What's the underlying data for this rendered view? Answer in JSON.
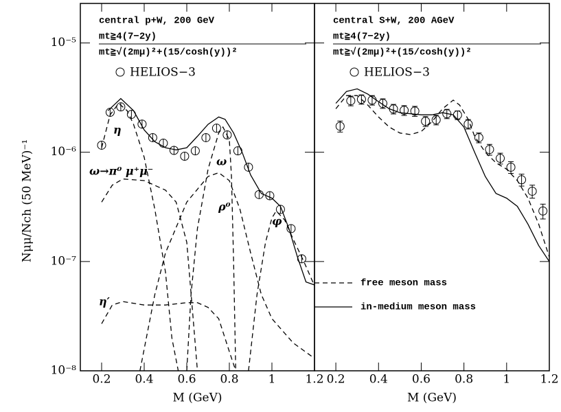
{
  "chart_data": [
    {
      "type": "line",
      "log_y": true,
      "xlabel": "M (GeV)",
      "ylabel": "Nμμ/Nch (50 MeV)⁻¹",
      "annotations": [
        "central p+W, 200 GeV",
        "mt≧4(7−2y)",
        "mt≧√(2mμ)²+(15/cosh(y))²"
      ],
      "xlim": [
        0.1,
        1.2
      ],
      "xticks": [
        0.2,
        0.4,
        0.6,
        0.8,
        1,
        1.2
      ],
      "ylim": [
        1e-08,
        2.3e-05
      ],
      "yticks": [
        {
          "value": 1e-08,
          "label": "10⁻⁸"
        },
        {
          "value": 1e-07,
          "label": "10⁻⁷"
        },
        {
          "value": 1e-06,
          "label": "10⁻⁶"
        },
        {
          "value": 1e-05,
          "label": "10⁻⁵"
        }
      ],
      "series": [
        {
          "name": "HELIOS−3",
          "style": "points",
          "color": "#000000",
          "x": [
            0.2,
            0.24,
            0.29,
            0.34,
            0.39,
            0.44,
            0.49,
            0.54,
            0.59,
            0.64,
            0.69,
            0.74,
            0.79,
            0.84,
            0.89,
            0.94,
            0.99,
            1.04,
            1.09,
            1.14
          ],
          "values": [
            1.16e-06,
            2.32e-06,
            2.6e-06,
            2.22e-06,
            1.81e-06,
            1.36e-06,
            1.21e-06,
            1.04e-06,
            9.2e-07,
            1.03e-06,
            1.36e-06,
            1.66e-06,
            1.44e-06,
            1.03e-06,
            7.3e-07,
            4.1e-07,
            4e-07,
            3e-07,
            2e-07,
            1.06e-07
          ]
        },
        {
          "style": "solid",
          "color": "#000000",
          "x": [
            0.23,
            0.29,
            0.35,
            0.4,
            0.45,
            0.5,
            0.55,
            0.6,
            0.65,
            0.7,
            0.75,
            0.78,
            0.82,
            0.86,
            0.9,
            0.95,
            1,
            1.04,
            1.08,
            1.12,
            1.16,
            1.2
          ],
          "values": [
            2.4e-06,
            3.1e-06,
            2.4e-06,
            1.6e-06,
            1.25e-06,
            1.1e-06,
            1.05e-06,
            1.1e-06,
            1.4e-06,
            1.8e-06,
            2.1e-06,
            2e-06,
            1.5e-06,
            1e-06,
            6.2e-07,
            4.2e-07,
            3.8e-07,
            3.2e-07,
            2e-07,
            1.1e-07,
            6.5e-08,
            6.1e-08
          ]
        },
        {
          "name": "η",
          "style": "dashed",
          "color": "#000000",
          "x": [
            0.2,
            0.24,
            0.28,
            0.32,
            0.35,
            0.4,
            0.45,
            0.5,
            0.53,
            0.56
          ],
          "values": [
            1.1e-06,
            2.2e-06,
            2.8e-06,
            2.4e-06,
            1.8e-06,
            9e-07,
            3e-07,
            8e-08,
            2e-08,
            1e-08
          ]
        },
        {
          "name": "ω→π⁰ μ⁺μ⁻",
          "style": "dashed",
          "color": "#000000",
          "x": [
            0.2,
            0.25,
            0.3,
            0.4,
            0.5,
            0.55,
            0.6,
            0.63,
            0.65
          ],
          "values": [
            3.5e-07,
            5e-07,
            5.7e-07,
            5.5e-07,
            4.5e-07,
            3.5e-07,
            1.5e-07,
            3e-08,
            1e-08
          ]
        },
        {
          "name": "ω",
          "style": "dashed",
          "color": "#000000",
          "x": [
            0.6,
            0.62,
            0.65,
            0.7,
            0.75,
            0.77,
            0.8,
            0.81,
            0.82,
            0.83
          ],
          "values": [
            1e-08,
            5e-08,
            2e-07,
            7e-07,
            1.5e-06,
            1.7e-06,
            1.3e-06,
            6e-07,
            1e-07,
            1e-08
          ]
        },
        {
          "name": "ρ⁰",
          "style": "dashed",
          "color": "#000000",
          "x": [
            0.38,
            0.45,
            0.5,
            0.6,
            0.7,
            0.75,
            0.8,
            0.85,
            0.9,
            0.95,
            1,
            1.1,
            1.2
          ],
          "values": [
            1e-08,
            5e-08,
            1.2e-07,
            3.5e-07,
            6e-07,
            6.5e-07,
            5.5e-07,
            3e-07,
            1.2e-07,
            5e-08,
            3e-08,
            1.8e-08,
            1.3e-08
          ]
        },
        {
          "name": "φ",
          "style": "dashed",
          "color": "#000000",
          "x": [
            0.89,
            0.93,
            0.97,
            1,
            1.02,
            1.06,
            1.1,
            1.15,
            1.2
          ],
          "values": [
            1e-08,
            5e-08,
            1.5e-07,
            2.5e-07,
            2.9e-07,
            2.4e-07,
            1.6e-07,
            1e-07,
            6e-08
          ]
        },
        {
          "name": "η′",
          "style": "dashed",
          "color": "#000000",
          "x": [
            0.2,
            0.25,
            0.3,
            0.4,
            0.5,
            0.6,
            0.65,
            0.7,
            0.75,
            0.8,
            0.83
          ],
          "values": [
            2.7e-08,
            4e-08,
            4.3e-08,
            4e-08,
            4e-08,
            4.2e-08,
            4.2e-08,
            3.8e-08,
            3e-08,
            1.5e-08,
            1e-08
          ]
        }
      ]
    },
    {
      "type": "line",
      "log_y": true,
      "xlabel": "M (GeV)",
      "legend": "lower left",
      "annotations": [
        "central S+W, 200 AGeV",
        "mt≧4(7−2y)",
        "mt≧√(2mμ)²+(15/cosh(y))²"
      ],
      "xlim": [
        0.1,
        1.2
      ],
      "xticks": [
        0.2,
        0.4,
        0.6,
        0.8,
        1,
        1.2
      ],
      "ylim": [
        1e-08,
        2.3e-05
      ],
      "yticks": [
        1e-08,
        1e-07,
        1e-06,
        1e-05
      ],
      "series": [
        {
          "name": "HELIOS−3",
          "style": "points",
          "color": "#000000",
          "x": [
            0.22,
            0.27,
            0.32,
            0.37,
            0.42,
            0.47,
            0.52,
            0.57,
            0.62,
            0.67,
            0.72,
            0.77,
            0.82,
            0.87,
            0.92,
            0.97,
            1.02,
            1.07,
            1.12,
            1.17
          ],
          "values": [
            1.73e-06,
            2.96e-06,
            3.05e-06,
            3e-06,
            2.8e-06,
            2.49e-06,
            2.42e-06,
            2.38e-06,
            1.92e-06,
            1.98e-06,
            2.25e-06,
            2.19e-06,
            1.81e-06,
            1.36e-06,
            1.06e-06,
            8.8e-07,
            7.3e-07,
            5.6e-07,
            4.4e-07,
            2.9e-07
          ],
          "errors": [
            2e-07,
            3e-07,
            3e-07,
            3e-07,
            2.8e-07,
            2.5e-07,
            2.5e-07,
            2.5e-07,
            2e-07,
            2e-07,
            2.2e-07,
            2e-07,
            1.8e-07,
            1.4e-07,
            1.2e-07,
            1e-07,
            9e-08,
            7e-08,
            6e-08,
            4.5e-08
          ]
        },
        {
          "name": "free meson mass",
          "style": "dashed",
          "color": "#000000",
          "x": [
            0.2,
            0.25,
            0.3,
            0.35,
            0.4,
            0.45,
            0.5,
            0.55,
            0.6,
            0.65,
            0.7,
            0.75,
            0.78,
            0.82,
            0.85,
            0.9,
            0.95,
            1,
            1.05,
            1.1,
            1.15,
            1.2
          ],
          "values": [
            2.5e-06,
            3.3e-06,
            3.3e-06,
            2.7e-06,
            2.1e-06,
            1.7e-06,
            1.5e-06,
            1.45e-06,
            1.55e-06,
            1.9e-06,
            2.5e-06,
            3e-06,
            2.7e-06,
            2e-06,
            1.4e-06,
            1e-06,
            8e-07,
            7e-07,
            5.5e-07,
            3.8e-07,
            2.2e-07,
            1.1e-07
          ]
        },
        {
          "name": "in-medium meson mass",
          "style": "solid",
          "color": "#000000",
          "x": [
            0.2,
            0.25,
            0.3,
            0.35,
            0.4,
            0.45,
            0.5,
            0.6,
            0.65,
            0.7,
            0.75,
            0.8,
            0.85,
            0.9,
            0.95,
            1,
            1.05,
            1.1,
            1.15,
            1.2
          ],
          "values": [
            2.8e-06,
            3.6e-06,
            3.8e-06,
            3.4e-06,
            2.9e-06,
            2.5e-06,
            2.3e-06,
            2.2e-06,
            2.2e-06,
            2.3e-06,
            2.2e-06,
            1.7e-06,
            1e-06,
            6e-07,
            4.2e-07,
            3.8e-07,
            3.2e-07,
            2.2e-07,
            1.4e-07,
            1e-07
          ]
        }
      ]
    }
  ]
}
